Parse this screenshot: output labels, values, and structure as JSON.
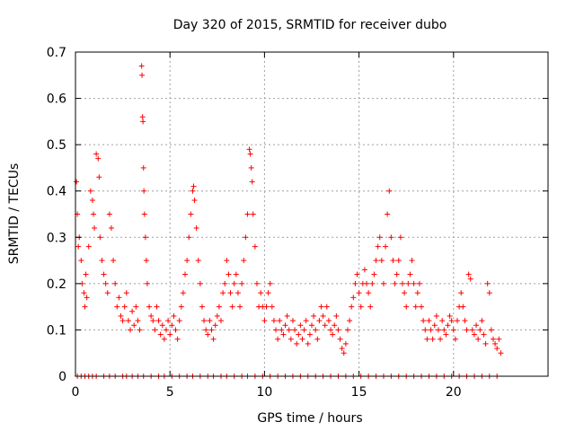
{
  "chart_data": {
    "type": "scatter",
    "title": "Day 320 of 2015, SRMTID for receiver dubo",
    "xlabel": "GPS time / hours",
    "ylabel": "SRMTID / TECUs",
    "xlim": [
      0,
      25
    ],
    "ylim": [
      0,
      0.7
    ],
    "x_ticks": [
      0,
      5,
      10,
      15,
      20
    ],
    "x_tick_labels": [
      "0",
      "5",
      "10",
      "15",
      "20"
    ],
    "y_ticks": [
      0,
      0.1,
      0.2,
      0.3,
      0.4,
      0.5,
      0.6,
      0.7
    ],
    "y_tick_labels": [
      "0",
      "0.1",
      "0.2",
      "0.3",
      "0.4",
      "0.5",
      "0.6",
      "0.7"
    ],
    "grid": true,
    "marker": "plus",
    "series": [
      {
        "name": "SRMTID",
        "color": "#ff0000",
        "points": [
          [
            0.05,
            0.42
          ],
          [
            0.1,
            0.35
          ],
          [
            0.15,
            0.28
          ],
          [
            0.2,
            0.3
          ],
          [
            0.3,
            0.25
          ],
          [
            0.35,
            0.2
          ],
          [
            0.45,
            0.18
          ],
          [
            0.5,
            0.15
          ],
          [
            0.55,
            0.22
          ],
          [
            0.6,
            0.17
          ],
          [
            0.7,
            0.28
          ],
          [
            0.8,
            0.4
          ],
          [
            0.9,
            0.38
          ],
          [
            0.95,
            0.35
          ],
          [
            1.0,
            0.32
          ],
          [
            1.1,
            0.48
          ],
          [
            1.2,
            0.47
          ],
          [
            1.25,
            0.43
          ],
          [
            1.3,
            0.3
          ],
          [
            1.4,
            0.25
          ],
          [
            1.5,
            0.22
          ],
          [
            1.6,
            0.2
          ],
          [
            1.7,
            0.18
          ],
          [
            1.8,
            0.35
          ],
          [
            1.9,
            0.32
          ],
          [
            2.0,
            0.25
          ],
          [
            2.1,
            0.2
          ],
          [
            2.2,
            0.15
          ],
          [
            2.3,
            0.17
          ],
          [
            2.4,
            0.13
          ],
          [
            2.5,
            0.12
          ],
          [
            2.6,
            0.15
          ],
          [
            2.7,
            0.18
          ],
          [
            2.8,
            0.12
          ],
          [
            2.9,
            0.1
          ],
          [
            3.0,
            0.14
          ],
          [
            3.1,
            0.11
          ],
          [
            3.2,
            0.15
          ],
          [
            3.3,
            0.12
          ],
          [
            3.4,
            0.1
          ],
          [
            3.5,
            0.67
          ],
          [
            3.52,
            0.65
          ],
          [
            3.55,
            0.56
          ],
          [
            3.57,
            0.55
          ],
          [
            3.6,
            0.45
          ],
          [
            3.62,
            0.4
          ],
          [
            3.65,
            0.35
          ],
          [
            3.7,
            0.3
          ],
          [
            3.75,
            0.25
          ],
          [
            3.8,
            0.2
          ],
          [
            3.9,
            0.15
          ],
          [
            4.0,
            0.13
          ],
          [
            4.1,
            0.12
          ],
          [
            4.2,
            0.1
          ],
          [
            4.3,
            0.15
          ],
          [
            4.4,
            0.12
          ],
          [
            4.5,
            0.09
          ],
          [
            4.6,
            0.11
          ],
          [
            4.7,
            0.08
          ],
          [
            4.8,
            0.1
          ],
          [
            4.9,
            0.12
          ],
          [
            5.0,
            0.09
          ],
          [
            5.1,
            0.11
          ],
          [
            5.2,
            0.13
          ],
          [
            5.3,
            0.1
          ],
          [
            5.4,
            0.08
          ],
          [
            5.5,
            0.12
          ],
          [
            5.6,
            0.15
          ],
          [
            5.7,
            0.18
          ],
          [
            5.8,
            0.22
          ],
          [
            5.9,
            0.25
          ],
          [
            6.0,
            0.3
          ],
          [
            6.1,
            0.35
          ],
          [
            6.2,
            0.4
          ],
          [
            6.25,
            0.41
          ],
          [
            6.3,
            0.38
          ],
          [
            6.4,
            0.32
          ],
          [
            6.5,
            0.25
          ],
          [
            6.6,
            0.2
          ],
          [
            6.7,
            0.15
          ],
          [
            6.8,
            0.12
          ],
          [
            6.9,
            0.1
          ],
          [
            7.0,
            0.09
          ],
          [
            7.1,
            0.12
          ],
          [
            7.2,
            0.1
          ],
          [
            7.3,
            0.08
          ],
          [
            7.4,
            0.11
          ],
          [
            7.5,
            0.13
          ],
          [
            7.6,
            0.15
          ],
          [
            7.7,
            0.12
          ],
          [
            7.8,
            0.18
          ],
          [
            7.9,
            0.2
          ],
          [
            8.0,
            0.25
          ],
          [
            8.1,
            0.22
          ],
          [
            8.2,
            0.18
          ],
          [
            8.3,
            0.15
          ],
          [
            8.4,
            0.2
          ],
          [
            8.5,
            0.22
          ],
          [
            8.6,
            0.18
          ],
          [
            8.7,
            0.15
          ],
          [
            8.8,
            0.2
          ],
          [
            8.9,
            0.25
          ],
          [
            9.0,
            0.3
          ],
          [
            9.1,
            0.35
          ],
          [
            9.2,
            0.49
          ],
          [
            9.25,
            0.48
          ],
          [
            9.3,
            0.45
          ],
          [
            9.35,
            0.42
          ],
          [
            9.4,
            0.35
          ],
          [
            9.5,
            0.28
          ],
          [
            9.6,
            0.2
          ],
          [
            9.7,
            0.15
          ],
          [
            9.8,
            0.18
          ],
          [
            9.9,
            0.15
          ],
          [
            10.0,
            0.12
          ],
          [
            10.1,
            0.15
          ],
          [
            10.2,
            0.18
          ],
          [
            10.3,
            0.2
          ],
          [
            10.4,
            0.15
          ],
          [
            10.5,
            0.12
          ],
          [
            10.6,
            0.1
          ],
          [
            10.7,
            0.08
          ],
          [
            10.8,
            0.12
          ],
          [
            10.9,
            0.1
          ],
          [
            11.0,
            0.09
          ],
          [
            11.1,
            0.11
          ],
          [
            11.2,
            0.13
          ],
          [
            11.3,
            0.1
          ],
          [
            11.4,
            0.08
          ],
          [
            11.5,
            0.12
          ],
          [
            11.6,
            0.1
          ],
          [
            11.7,
            0.07
          ],
          [
            11.8,
            0.09
          ],
          [
            11.9,
            0.11
          ],
          [
            12.0,
            0.08
          ],
          [
            12.1,
            0.1
          ],
          [
            12.2,
            0.12
          ],
          [
            12.3,
            0.07
          ],
          [
            12.4,
            0.09
          ],
          [
            12.5,
            0.11
          ],
          [
            12.6,
            0.13
          ],
          [
            12.7,
            0.1
          ],
          [
            12.8,
            0.08
          ],
          [
            12.9,
            0.12
          ],
          [
            13.0,
            0.15
          ],
          [
            13.1,
            0.13
          ],
          [
            13.2,
            0.11
          ],
          [
            13.3,
            0.15
          ],
          [
            13.4,
            0.12
          ],
          [
            13.5,
            0.1
          ],
          [
            13.6,
            0.09
          ],
          [
            13.7,
            0.11
          ],
          [
            13.8,
            0.13
          ],
          [
            13.9,
            0.1
          ],
          [
            14.0,
            0.08
          ],
          [
            14.1,
            0.06
          ],
          [
            14.2,
            0.05
          ],
          [
            14.3,
            0.07
          ],
          [
            14.4,
            0.1
          ],
          [
            14.5,
            0.12
          ],
          [
            14.6,
            0.15
          ],
          [
            14.7,
            0.17
          ],
          [
            14.8,
            0.2
          ],
          [
            14.9,
            0.22
          ],
          [
            15.0,
            0.18
          ],
          [
            15.1,
            0.15
          ],
          [
            15.2,
            0.2
          ],
          [
            15.3,
            0.23
          ],
          [
            15.4,
            0.2
          ],
          [
            15.5,
            0.18
          ],
          [
            15.6,
            0.15
          ],
          [
            15.7,
            0.2
          ],
          [
            15.8,
            0.22
          ],
          [
            15.9,
            0.25
          ],
          [
            16.0,
            0.28
          ],
          [
            16.1,
            0.3
          ],
          [
            16.2,
            0.25
          ],
          [
            16.3,
            0.2
          ],
          [
            16.4,
            0.28
          ],
          [
            16.5,
            0.35
          ],
          [
            16.6,
            0.4
          ],
          [
            16.7,
            0.3
          ],
          [
            16.8,
            0.25
          ],
          [
            16.9,
            0.2
          ],
          [
            17.0,
            0.22
          ],
          [
            17.1,
            0.25
          ],
          [
            17.2,
            0.3
          ],
          [
            17.3,
            0.2
          ],
          [
            17.4,
            0.18
          ],
          [
            17.5,
            0.15
          ],
          [
            17.6,
            0.2
          ],
          [
            17.7,
            0.22
          ],
          [
            17.8,
            0.25
          ],
          [
            17.9,
            0.2
          ],
          [
            18.0,
            0.15
          ],
          [
            18.1,
            0.18
          ],
          [
            18.2,
            0.2
          ],
          [
            18.3,
            0.15
          ],
          [
            18.4,
            0.12
          ],
          [
            18.5,
            0.1
          ],
          [
            18.6,
            0.08
          ],
          [
            18.7,
            0.12
          ],
          [
            18.8,
            0.1
          ],
          [
            18.9,
            0.08
          ],
          [
            19.0,
            0.11
          ],
          [
            19.1,
            0.13
          ],
          [
            19.2,
            0.1
          ],
          [
            19.3,
            0.08
          ],
          [
            19.4,
            0.12
          ],
          [
            19.5,
            0.1
          ],
          [
            19.6,
            0.09
          ],
          [
            19.7,
            0.11
          ],
          [
            19.8,
            0.13
          ],
          [
            19.9,
            0.12
          ],
          [
            20.0,
            0.1
          ],
          [
            20.1,
            0.08
          ],
          [
            20.2,
            0.12
          ],
          [
            20.3,
            0.15
          ],
          [
            20.4,
            0.18
          ],
          [
            20.5,
            0.15
          ],
          [
            20.6,
            0.12
          ],
          [
            20.7,
            0.1
          ],
          [
            20.8,
            0.22
          ],
          [
            20.9,
            0.21
          ],
          [
            21.0,
            0.1
          ],
          [
            21.1,
            0.09
          ],
          [
            21.2,
            0.11
          ],
          [
            21.3,
            0.08
          ],
          [
            21.4,
            0.1
          ],
          [
            21.5,
            0.12
          ],
          [
            21.6,
            0.09
          ],
          [
            21.7,
            0.07
          ],
          [
            21.8,
            0.2
          ],
          [
            21.9,
            0.18
          ],
          [
            22.0,
            0.1
          ],
          [
            22.1,
            0.08
          ],
          [
            22.2,
            0.07
          ],
          [
            22.3,
            0.06
          ],
          [
            22.4,
            0.08
          ],
          [
            22.5,
            0.05
          ]
        ],
        "zero_points_x": [
          0.1,
          0.3,
          0.5,
          0.7,
          0.9,
          1.1,
          1.5,
          1.8,
          2.1,
          2.5,
          2.7,
          3.0,
          3.3,
          3.6,
          4.0,
          4.4,
          4.7,
          5.1,
          5.5,
          5.9,
          6.2,
          6.6,
          7.0,
          7.3,
          7.7,
          8.0,
          8.4,
          8.8,
          9.1,
          9.5,
          9.9,
          10.3,
          10.7,
          11.1,
          11.5,
          11.9,
          12.3,
          12.7,
          13.1,
          13.5,
          13.9,
          14.3,
          14.7,
          15.1,
          15.5,
          15.9,
          16.3,
          16.7,
          17.1,
          17.5,
          17.9,
          18.3,
          18.7,
          19.1,
          19.5,
          19.9,
          20.3,
          20.7,
          21.1,
          21.5,
          21.9,
          22.3
        ]
      }
    ]
  }
}
